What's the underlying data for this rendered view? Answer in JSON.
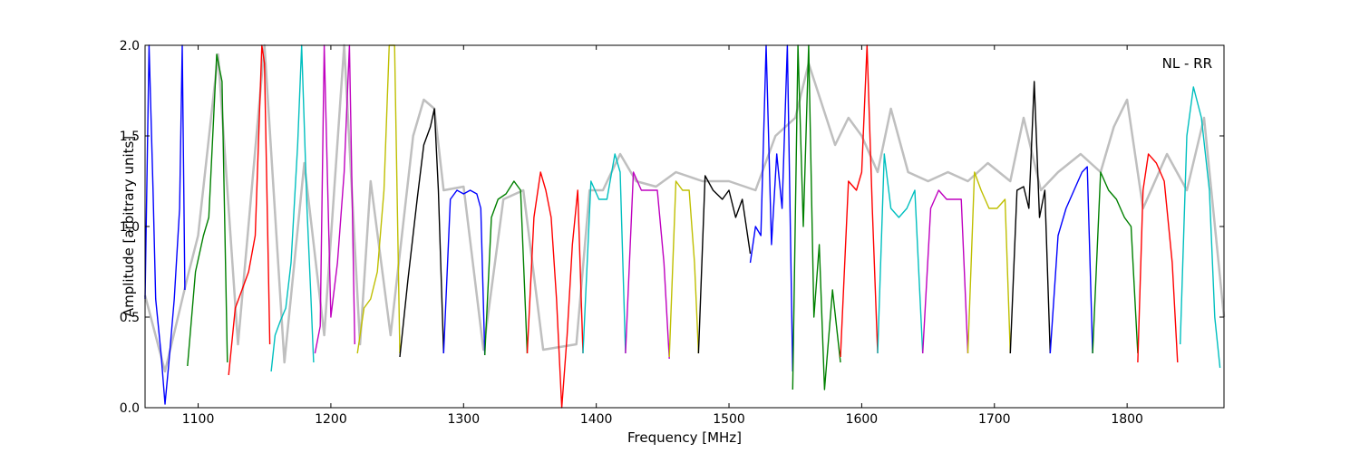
{
  "chart_data": {
    "type": "line",
    "title": "",
    "xlabel": "Frequency [MHz]",
    "ylabel": "Amplitude [arbitrary units]",
    "xlim": [
      1060,
      1873
    ],
    "ylim": [
      0.0,
      2.0
    ],
    "xticks": [
      1100,
      1200,
      1300,
      1400,
      1500,
      1600,
      1700,
      1800
    ],
    "yticks": [
      0.0,
      0.5,
      1.0,
      1.5,
      2.0
    ],
    "xtick_labels": [
      "1100",
      "1200",
      "1300",
      "1400",
      "1500",
      "1600",
      "1700",
      "1800"
    ],
    "ytick_labels": [
      "0.0",
      "0.5",
      "1.0",
      "1.5",
      "2.0"
    ],
    "annotation": "NL - RR",
    "grid": false,
    "background_trace": {
      "color": "#bfbfbf",
      "x": [
        1060,
        1075,
        1092,
        1100,
        1115,
        1130,
        1150,
        1165,
        1180,
        1195,
        1210,
        1222,
        1230,
        1245,
        1262,
        1270,
        1278,
        1285,
        1300,
        1315,
        1330,
        1345,
        1360,
        1385,
        1395,
        1405,
        1418,
        1430,
        1445,
        1460,
        1480,
        1500,
        1520,
        1535,
        1550,
        1560,
        1580,
        1590,
        1600,
        1612,
        1622,
        1635,
        1650,
        1665,
        1680,
        1695,
        1712,
        1722,
        1735,
        1748,
        1765,
        1780,
        1790,
        1800,
        1812,
        1830,
        1845,
        1858,
        1873
      ],
      "y": [
        0.62,
        0.2,
        0.72,
        0.95,
        1.95,
        0.35,
        2.0,
        0.25,
        1.35,
        0.4,
        2.0,
        0.35,
        1.25,
        0.4,
        1.5,
        1.7,
        1.65,
        1.2,
        1.22,
        0.32,
        1.15,
        1.2,
        0.32,
        0.35,
        1.2,
        1.2,
        1.4,
        1.25,
        1.22,
        1.3,
        1.25,
        1.25,
        1.2,
        1.5,
        1.6,
        1.9,
        1.45,
        1.6,
        1.5,
        1.3,
        1.65,
        1.3,
        1.25,
        1.3,
        1.25,
        1.35,
        1.25,
        1.6,
        1.2,
        1.3,
        1.4,
        1.3,
        1.55,
        1.7,
        1.1,
        1.4,
        1.2,
        1.6,
        0.5
      ]
    },
    "series": [
      {
        "color": "#0000ff",
        "x": [
          1060,
          1063,
          1066,
          1068,
          1072,
          1075,
          1078,
          1082,
          1086,
          1088,
          1090
        ],
        "y": [
          0.6,
          2.0,
          1.2,
          0.6,
          0.3,
          0.02,
          0.25,
          0.6,
          1.1,
          2.0,
          0.65
        ]
      },
      {
        "color": "#008000",
        "x": [
          1092,
          1098,
          1104,
          1108,
          1114,
          1118,
          1122
        ],
        "y": [
          0.23,
          0.75,
          0.95,
          1.05,
          1.95,
          1.8,
          0.25
        ]
      },
      {
        "color": "#ff0000",
        "x": [
          1123,
          1128,
          1133,
          1138,
          1143,
          1148,
          1150,
          1154
        ],
        "y": [
          0.18,
          0.55,
          0.65,
          0.75,
          0.95,
          2.0,
          1.9,
          0.35
        ]
      },
      {
        "color": "#00bfbf",
        "x": [
          1155,
          1158,
          1162,
          1166,
          1170,
          1175,
          1178,
          1182,
          1185,
          1187
        ],
        "y": [
          0.2,
          0.4,
          0.48,
          0.55,
          0.8,
          1.45,
          2.0,
          1.1,
          0.6,
          0.25
        ]
      },
      {
        "color": "#bf00bf",
        "x": [
          1188,
          1192,
          1195,
          1200,
          1205,
          1210,
          1214,
          1218
        ],
        "y": [
          0.3,
          0.45,
          2.0,
          0.5,
          0.8,
          1.3,
          2.0,
          0.35
        ]
      },
      {
        "color": "#bfbf00",
        "x": [
          1220,
          1225,
          1230,
          1235,
          1240,
          1244,
          1248,
          1252
        ],
        "y": [
          0.3,
          0.55,
          0.6,
          0.75,
          1.2,
          2.0,
          2.0,
          0.3
        ]
      },
      {
        "color": "#000000",
        "x": [
          1252,
          1258,
          1265,
          1270,
          1275,
          1278,
          1281,
          1285
        ],
        "y": [
          0.28,
          0.7,
          1.15,
          1.45,
          1.55,
          1.65,
          1.2,
          0.3
        ]
      },
      {
        "color": "#0000ff",
        "x": [
          1285,
          1290,
          1295,
          1300,
          1305,
          1310,
          1313,
          1316
        ],
        "y": [
          0.3,
          1.15,
          1.2,
          1.18,
          1.2,
          1.18,
          1.1,
          0.29
        ]
      },
      {
        "color": "#008000",
        "x": [
          1316,
          1321,
          1326,
          1332,
          1338,
          1343,
          1348
        ],
        "y": [
          0.29,
          1.05,
          1.15,
          1.18,
          1.25,
          1.2,
          0.3
        ]
      },
      {
        "color": "#ff0000",
        "x": [
          1348,
          1353,
          1358,
          1362,
          1366,
          1370,
          1374,
          1378,
          1382,
          1386,
          1390
        ],
        "y": [
          0.3,
          1.05,
          1.3,
          1.2,
          1.05,
          0.6,
          0.0,
          0.4,
          0.9,
          1.2,
          0.3
        ]
      },
      {
        "color": "#00bfbf",
        "x": [
          1390,
          1396,
          1402,
          1408,
          1414,
          1418,
          1422
        ],
        "y": [
          0.3,
          1.25,
          1.15,
          1.15,
          1.4,
          1.3,
          0.3
        ]
      },
      {
        "color": "#bf00bf",
        "x": [
          1422,
          1428,
          1434,
          1440,
          1446,
          1451,
          1455
        ],
        "y": [
          0.3,
          1.3,
          1.2,
          1.2,
          1.2,
          0.8,
          0.27
        ]
      },
      {
        "color": "#bfbf00",
        "x": [
          1455,
          1460,
          1465,
          1470,
          1474,
          1477
        ],
        "y": [
          0.28,
          1.25,
          1.2,
          1.2,
          0.8,
          0.3
        ]
      },
      {
        "color": "#000000",
        "x": [
          1477,
          1482,
          1488,
          1495,
          1500,
          1505,
          1510,
          1516
        ],
        "y": [
          0.3,
          1.28,
          1.2,
          1.15,
          1.2,
          1.05,
          1.15,
          0.85
        ]
      },
      {
        "color": "#0000ff",
        "x": [
          1516,
          1520,
          1524,
          1528,
          1532,
          1536,
          1540,
          1544,
          1548
        ],
        "y": [
          0.8,
          1.0,
          0.95,
          2.0,
          0.9,
          1.4,
          1.1,
          2.0,
          0.2
        ]
      },
      {
        "color": "#008000",
        "x": [
          1548,
          1552,
          1556,
          1560,
          1564,
          1568,
          1572,
          1578,
          1584
        ],
        "y": [
          0.1,
          2.0,
          1.0,
          2.0,
          0.5,
          0.9,
          0.1,
          0.65,
          0.25
        ]
      },
      {
        "color": "#ff0000",
        "x": [
          1584,
          1590,
          1596,
          1600,
          1604,
          1608,
          1612
        ],
        "y": [
          0.28,
          1.25,
          1.2,
          1.3,
          2.0,
          1.1,
          0.3
        ]
      },
      {
        "color": "#00bfbf",
        "x": [
          1612,
          1617,
          1622,
          1628,
          1634,
          1640,
          1646
        ],
        "y": [
          0.3,
          1.4,
          1.1,
          1.05,
          1.1,
          1.2,
          0.3
        ]
      },
      {
        "color": "#bf00bf",
        "x": [
          1646,
          1652,
          1658,
          1664,
          1670,
          1675,
          1680
        ],
        "y": [
          0.3,
          1.1,
          1.2,
          1.15,
          1.15,
          1.15,
          0.3
        ]
      },
      {
        "color": "#bfbf00",
        "x": [
          1680,
          1685,
          1690,
          1696,
          1702,
          1708,
          1712
        ],
        "y": [
          0.3,
          1.3,
          1.2,
          1.1,
          1.1,
          1.15,
          0.3
        ]
      },
      {
        "color": "#000000",
        "x": [
          1712,
          1717,
          1722,
          1726,
          1730,
          1734,
          1738,
          1742
        ],
        "y": [
          0.3,
          1.2,
          1.22,
          1.1,
          1.8,
          1.05,
          1.2,
          0.3
        ]
      },
      {
        "color": "#0000ff",
        "x": [
          1742,
          1748,
          1754,
          1760,
          1766,
          1770,
          1774
        ],
        "y": [
          0.3,
          0.95,
          1.1,
          1.2,
          1.3,
          1.33,
          0.3
        ]
      },
      {
        "color": "#008000",
        "x": [
          1774,
          1780,
          1786,
          1792,
          1798,
          1803,
          1808
        ],
        "y": [
          0.3,
          1.3,
          1.2,
          1.15,
          1.05,
          1.0,
          0.3
        ]
      },
      {
        "color": "#ff0000",
        "x": [
          1808,
          1812,
          1816,
          1822,
          1828,
          1834,
          1838
        ],
        "y": [
          0.25,
          1.2,
          1.4,
          1.35,
          1.25,
          0.8,
          0.25
        ]
      },
      {
        "color": "#00bfbf",
        "x": [
          1840,
          1845,
          1850,
          1856,
          1862,
          1866,
          1870
        ],
        "y": [
          0.35,
          1.5,
          1.77,
          1.6,
          1.2,
          0.5,
          0.22
        ]
      }
    ]
  }
}
